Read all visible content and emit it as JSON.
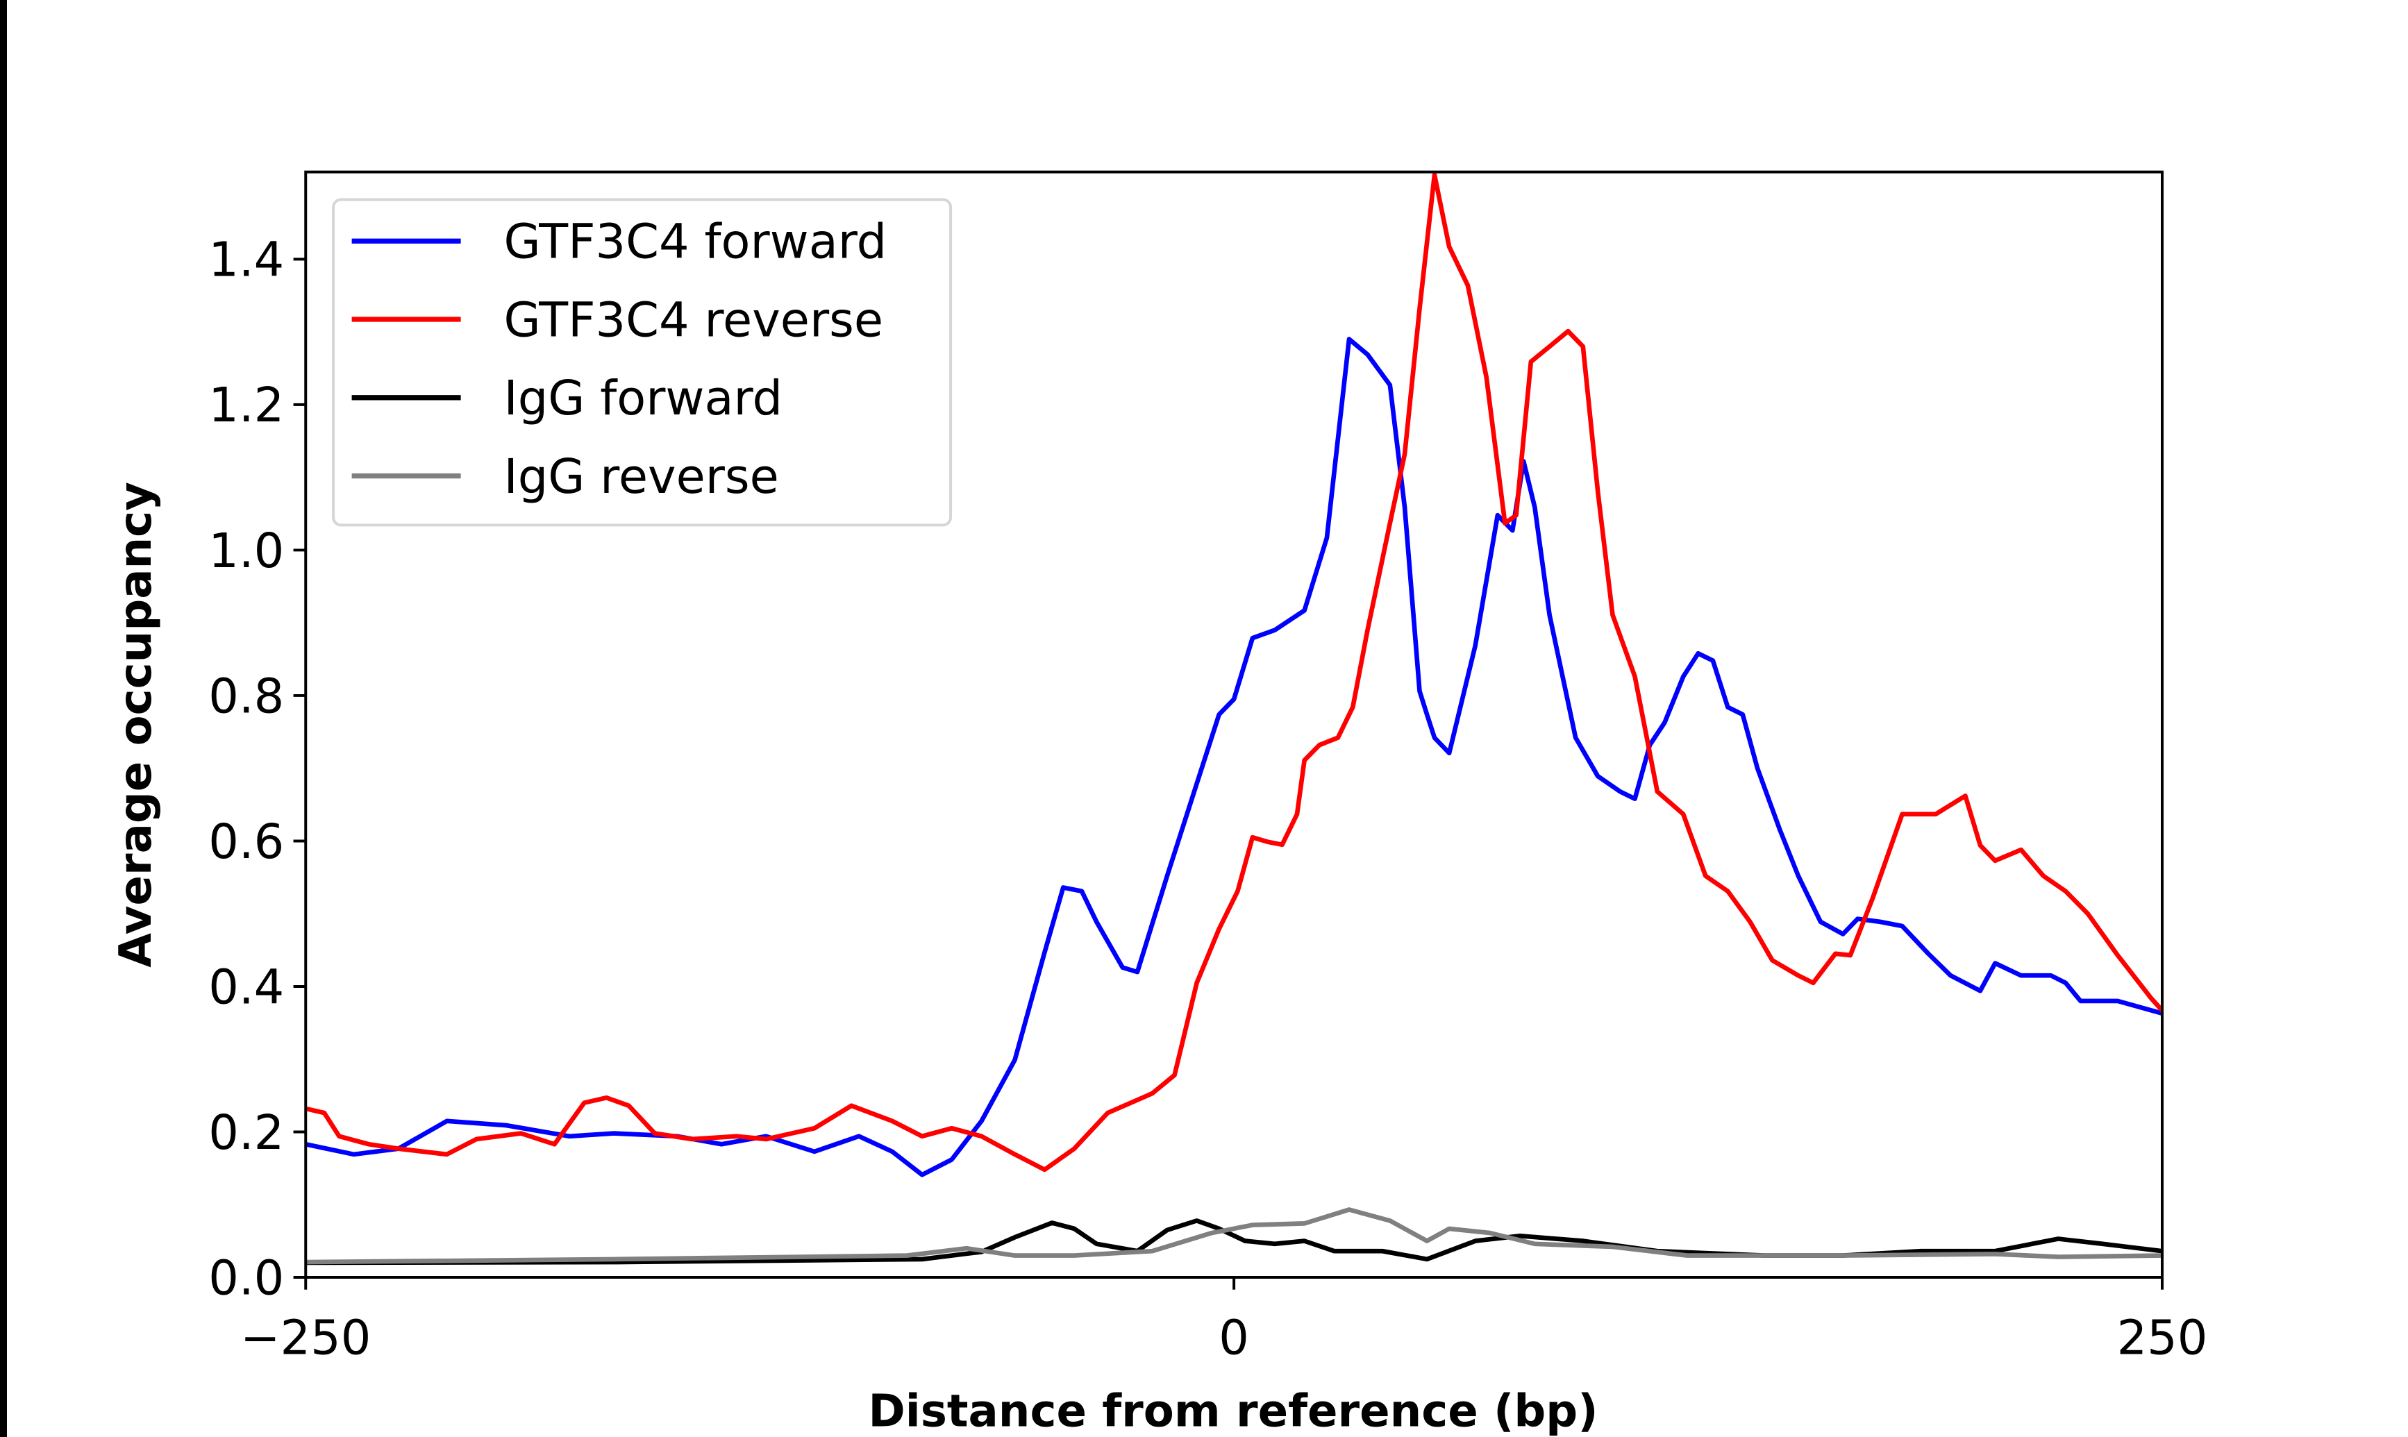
{
  "chart_data": {
    "type": "line",
    "title": "",
    "xlabel": "Distance from reference (bp)",
    "ylabel": "Average occupancy",
    "xlim": [
      -250,
      250
    ],
    "ylim": [
      0,
      1.52
    ],
    "xticks": [
      -250,
      0,
      250
    ],
    "xtick_labels": [
      "−250",
      "0",
      "250"
    ],
    "yticks": [
      0.0,
      0.2,
      0.4,
      0.6,
      0.8,
      1.0,
      1.2,
      1.4
    ],
    "ytick_labels": [
      "0.0",
      "0.2",
      "0.4",
      "0.6",
      "0.8",
      "1.0",
      "1.2",
      "1.4"
    ],
    "grid": false,
    "legend_placement": "top-left",
    "series": [
      {
        "name": "GTF3C4 forward",
        "color": "#0000ff",
        "x": [
          -250,
          -237,
          -225,
          -212,
          -196,
          -179,
          -167,
          -150,
          -138,
          -126,
          -113,
          -101,
          -92,
          -84,
          -76,
          -68,
          -59,
          -51,
          -46,
          -41,
          -37,
          -30,
          -26,
          -18,
          -10,
          -4,
          0,
          5,
          11,
          19,
          25,
          31,
          36,
          42,
          46,
          50,
          52,
          54,
          58,
          65,
          71,
          75,
          78,
          81,
          85,
          92,
          98,
          104,
          108,
          112,
          116,
          121,
          125,
          129,
          133,
          137,
          141,
          147,
          152,
          158,
          164,
          168,
          174,
          180,
          187,
          193,
          201,
          205,
          212,
          220,
          224,
          228,
          238,
          250
        ],
        "y": [
          0.183,
          0.169,
          0.177,
          0.215,
          0.209,
          0.194,
          0.198,
          0.194,
          0.183,
          0.194,
          0.173,
          0.194,
          0.173,
          0.141,
          0.162,
          0.215,
          0.299,
          0.447,
          0.536,
          0.531,
          0.489,
          0.426,
          0.42,
          0.552,
          0.679,
          0.774,
          0.795,
          0.879,
          0.89,
          0.917,
          1.017,
          1.29,
          1.269,
          1.227,
          1.059,
          0.806,
          0.774,
          0.742,
          0.721,
          0.869,
          1.048,
          1.027,
          1.122,
          1.059,
          0.911,
          0.742,
          0.689,
          0.668,
          0.658,
          0.732,
          0.763,
          0.826,
          0.858,
          0.848,
          0.784,
          0.774,
          0.7,
          0.616,
          0.552,
          0.489,
          0.472,
          0.493,
          0.489,
          0.483,
          0.445,
          0.415,
          0.394,
          0.432,
          0.415,
          0.415,
          0.405,
          0.38,
          0.38,
          0.363
        ]
      },
      {
        "name": "GTF3C4 reverse",
        "color": "#ff0000",
        "x": [
          -250,
          -245,
          -241,
          -233,
          -225,
          -212,
          -204,
          -192,
          -183,
          -175,
          -169,
          -163,
          -156,
          -146,
          -134,
          -126,
          -113,
          -103,
          -92,
          -84,
          -76,
          -68,
          -59,
          -51,
          -43,
          -34,
          -22,
          -16,
          -10,
          -4,
          1,
          5,
          9,
          13,
          17,
          19,
          23,
          28,
          32,
          36,
          42,
          46,
          50,
          54,
          58,
          63,
          68,
          73,
          76,
          80,
          85,
          90,
          94,
          98,
          102,
          108,
          114,
          121,
          127,
          133,
          139,
          145,
          152,
          156,
          162,
          166,
          172,
          180,
          189,
          197,
          201,
          205,
          212,
          218,
          224,
          230,
          238,
          247,
          250
        ],
        "y": [
          0.232,
          0.226,
          0.194,
          0.183,
          0.177,
          0.169,
          0.19,
          0.198,
          0.183,
          0.24,
          0.247,
          0.236,
          0.198,
          0.19,
          0.194,
          0.19,
          0.205,
          0.236,
          0.215,
          0.194,
          0.205,
          0.194,
          0.169,
          0.148,
          0.177,
          0.226,
          0.253,
          0.278,
          0.405,
          0.479,
          0.531,
          0.605,
          0.599,
          0.595,
          0.637,
          0.711,
          0.732,
          0.742,
          0.784,
          0.89,
          1.037,
          1.132,
          1.332,
          1.516,
          1.417,
          1.364,
          1.238,
          1.037,
          1.048,
          1.259,
          1.28,
          1.301,
          1.28,
          1.08,
          0.911,
          0.826,
          0.668,
          0.637,
          0.552,
          0.531,
          0.489,
          0.436,
          0.415,
          0.405,
          0.445,
          0.443,
          0.521,
          0.637,
          0.637,
          0.662,
          0.594,
          0.573,
          0.588,
          0.552,
          0.531,
          0.5,
          0.443,
          0.384,
          0.367
        ]
      },
      {
        "name": "IgG forward",
        "color": "#000000",
        "x": [
          -250,
          -167,
          -84,
          -68,
          -59,
          -49,
          -43,
          -37,
          -26,
          -18,
          -10,
          -4,
          3,
          11,
          19,
          27,
          40,
          52,
          65,
          77,
          94,
          114,
          143,
          164,
          185,
          205,
          222,
          234,
          250
        ],
        "y": [
          0.02,
          0.021,
          0.025,
          0.035,
          0.055,
          0.075,
          0.067,
          0.046,
          0.036,
          0.065,
          0.078,
          0.067,
          0.05,
          0.046,
          0.05,
          0.036,
          0.036,
          0.025,
          0.05,
          0.057,
          0.05,
          0.036,
          0.03,
          0.03,
          0.036,
          0.036,
          0.053,
          0.046,
          0.036
        ]
      },
      {
        "name": "IgG reverse",
        "color": "#808080",
        "x": [
          -250,
          -167,
          -88,
          -72,
          -59,
          -43,
          -22,
          -6,
          5,
          19,
          31,
          42,
          52,
          58,
          69,
          81,
          102,
          122,
          164,
          205,
          222,
          250
        ],
        "y": [
          0.021,
          0.025,
          0.03,
          0.04,
          0.03,
          0.03,
          0.036,
          0.061,
          0.072,
          0.074,
          0.093,
          0.078,
          0.05,
          0.067,
          0.061,
          0.046,
          0.042,
          0.03,
          0.03,
          0.032,
          0.028,
          0.03
        ]
      }
    ]
  }
}
